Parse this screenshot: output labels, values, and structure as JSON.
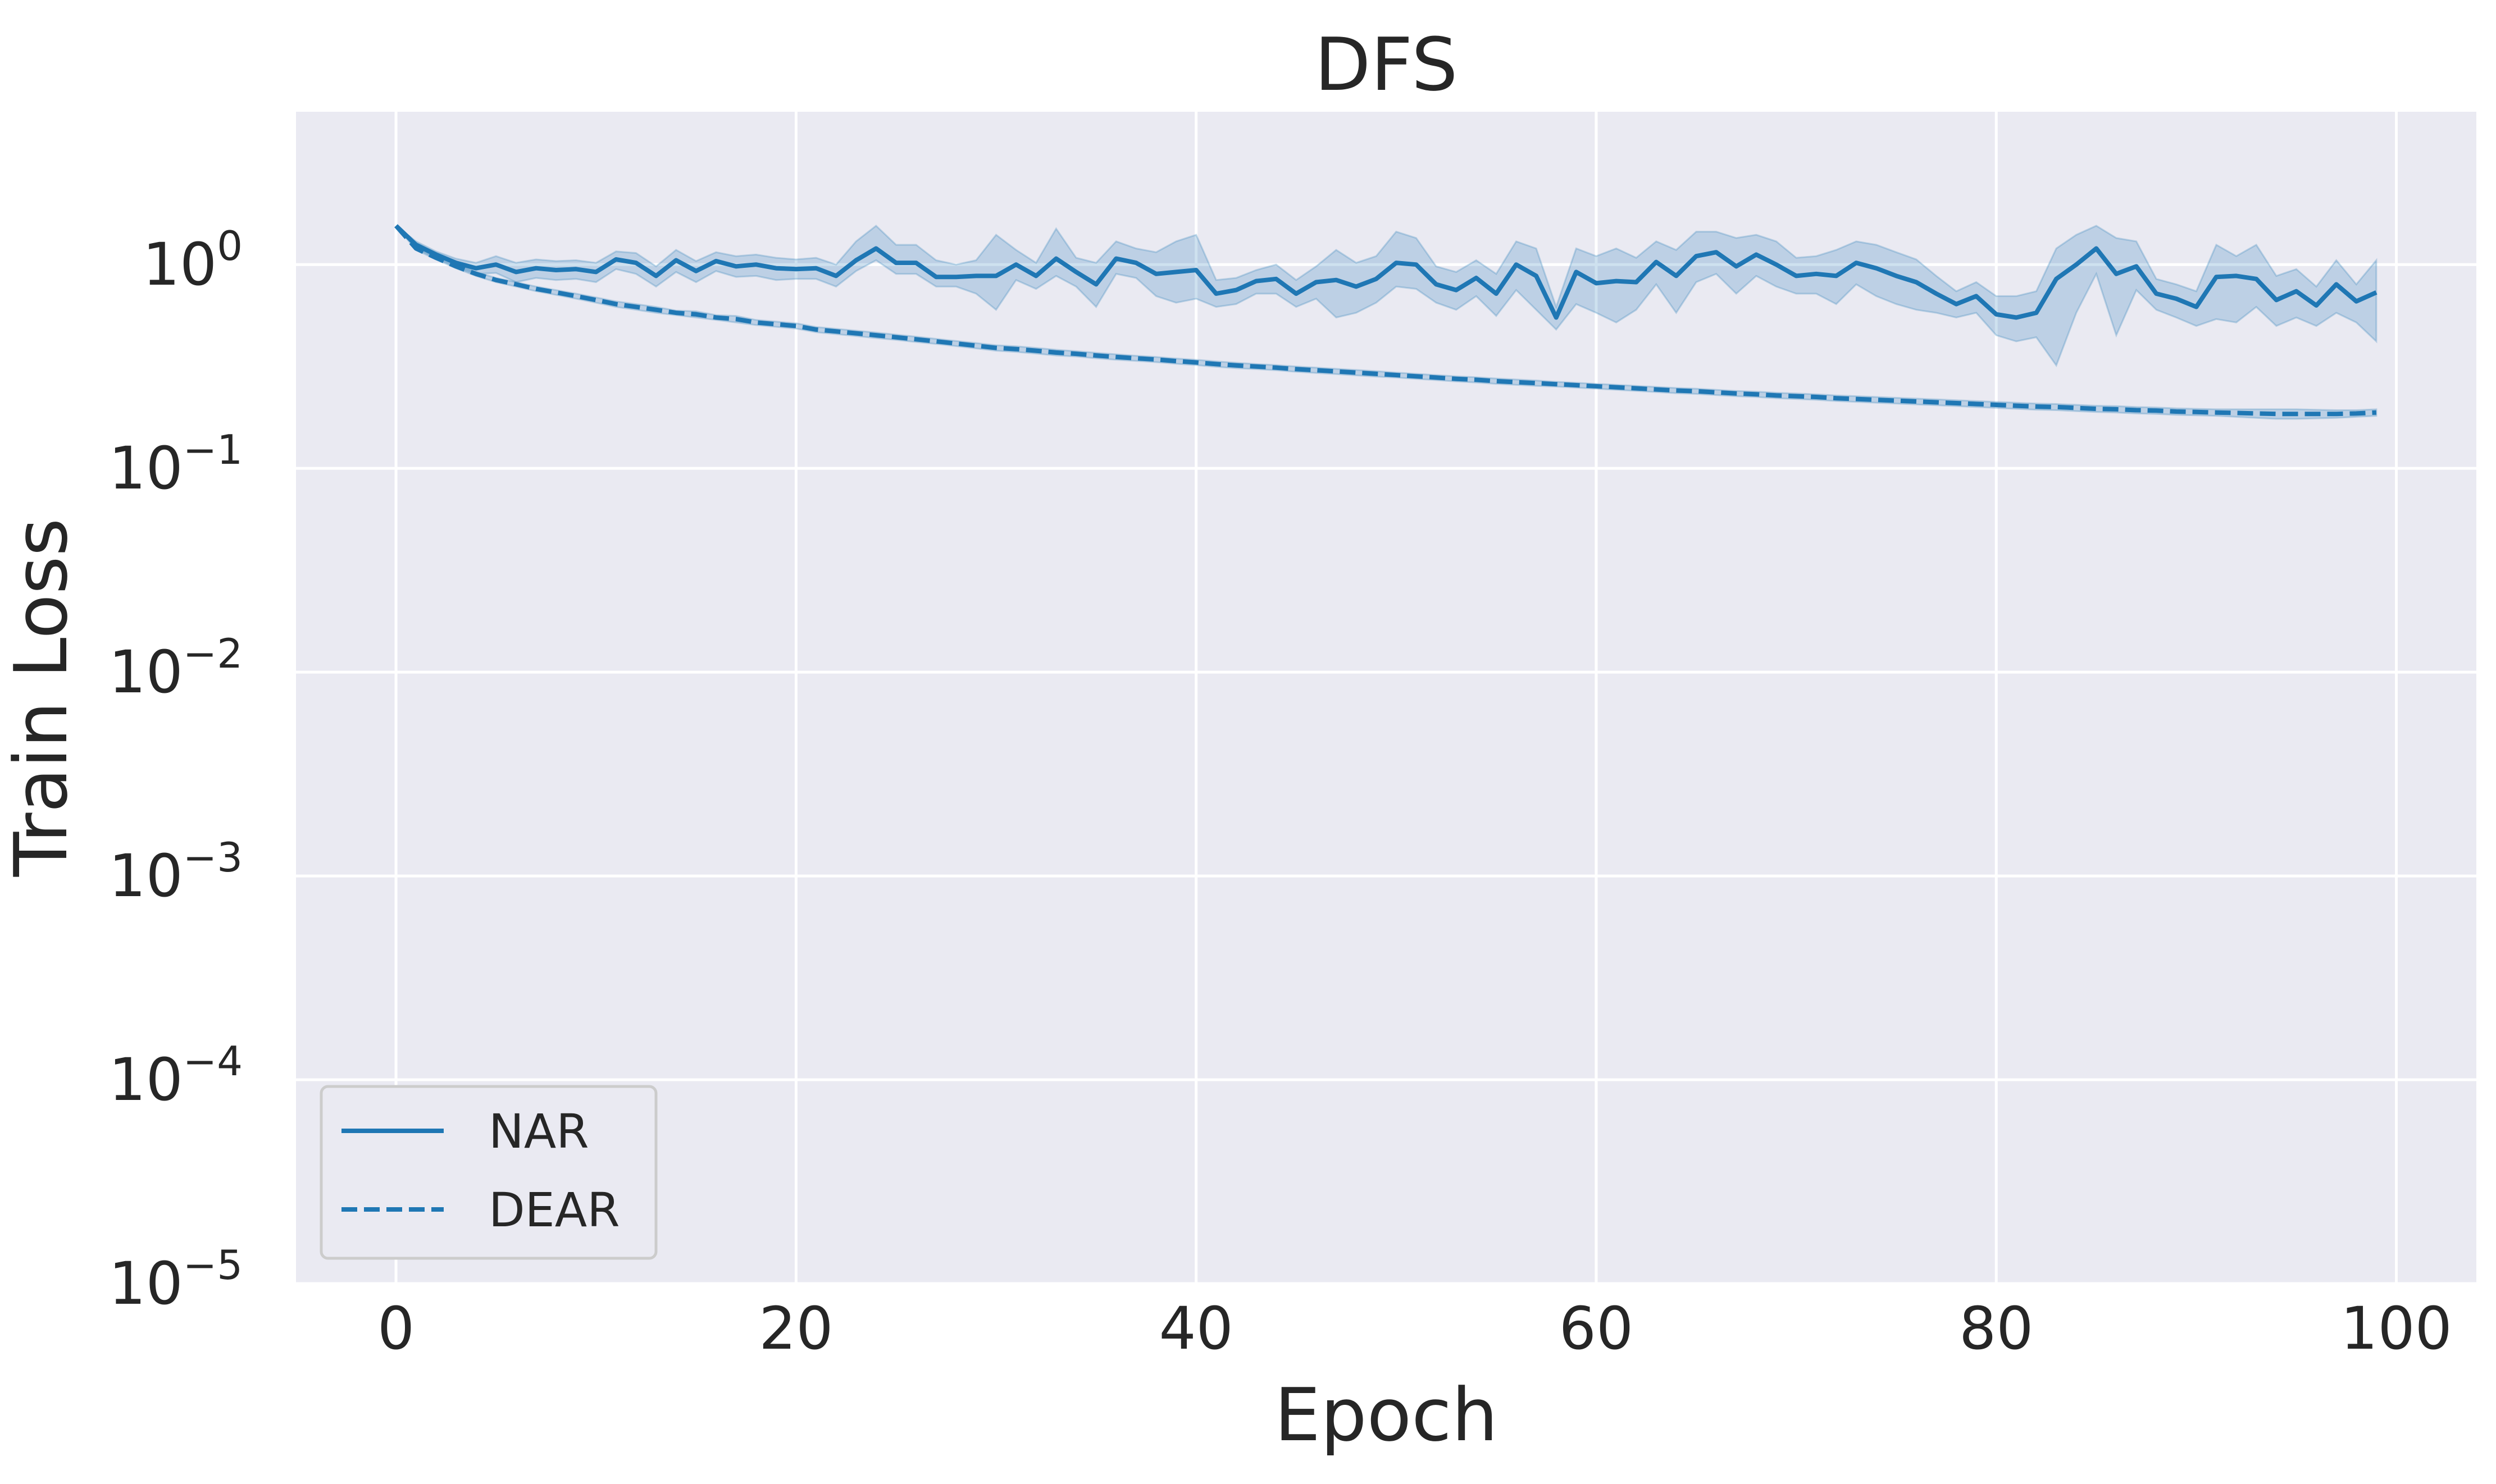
{
  "chart_data": {
    "type": "line",
    "title": "DFS",
    "xlabel": "Epoch",
    "ylabel": "Train Loss",
    "yscale": "log",
    "xlim": [
      -5,
      104
    ],
    "ylim_exponent": [
      -5,
      0.75
    ],
    "x_ticks": [
      {
        "value": 0,
        "label": "0"
      },
      {
        "value": 20,
        "label": "20"
      },
      {
        "value": 40,
        "label": "40"
      },
      {
        "value": 60,
        "label": "60"
      },
      {
        "value": 80,
        "label": "80"
      },
      {
        "value": 100,
        "label": "100"
      }
    ],
    "y_ticks": [
      {
        "exp": 0,
        "base": "10",
        "sup": "0"
      },
      {
        "exp": -1,
        "base": "10",
        "sup": "−1"
      },
      {
        "exp": -2,
        "base": "10",
        "sup": "−2"
      },
      {
        "exp": -3,
        "base": "10",
        "sup": "−3"
      },
      {
        "exp": -4,
        "base": "10",
        "sup": "−4"
      },
      {
        "exp": -5,
        "base": "10",
        "sup": "−5"
      }
    ],
    "grid": true,
    "legend_position": "lower-left",
    "background_color": "#eaeaf2",
    "series": [
      {
        "name": "NAR",
        "style": "solid",
        "color": "#1f77b4",
        "band_color": "#1f77b4",
        "x": [
          0,
          1,
          2,
          3,
          4,
          5,
          6,
          7,
          8,
          9,
          10,
          11,
          12,
          13,
          14,
          15,
          16,
          17,
          18,
          19,
          20,
          21,
          22,
          23,
          24,
          25,
          26,
          27,
          28,
          29,
          30,
          31,
          32,
          33,
          34,
          35,
          36,
          37,
          38,
          39,
          40,
          41,
          42,
          43,
          44,
          45,
          46,
          47,
          48,
          49,
          50,
          51,
          52,
          53,
          54,
          55,
          56,
          57,
          58,
          59,
          60,
          61,
          62,
          63,
          64,
          65,
          66,
          67,
          68,
          69,
          70,
          71,
          72,
          73,
          74,
          75,
          76,
          77,
          78,
          79,
          80,
          81,
          82,
          83,
          84,
          85,
          86,
          87,
          88,
          89,
          90,
          91,
          92,
          93,
          94,
          95,
          96,
          97,
          98,
          99
        ],
        "values": [
          1.55,
          1.25,
          1.12,
          1.02,
          0.96,
          1.0,
          0.92,
          0.96,
          0.94,
          0.95,
          0.92,
          1.06,
          1.02,
          0.88,
          1.05,
          0.93,
          1.04,
          0.98,
          1.0,
          0.96,
          0.95,
          0.96,
          0.88,
          1.05,
          1.2,
          1.02,
          1.02,
          0.87,
          0.87,
          0.88,
          0.88,
          1.0,
          0.88,
          1.07,
          0.92,
          0.8,
          1.07,
          1.02,
          0.9,
          0.92,
          0.94,
          0.72,
          0.75,
          0.83,
          0.85,
          0.72,
          0.82,
          0.84,
          0.78,
          0.85,
          1.02,
          1.0,
          0.8,
          0.75,
          0.86,
          0.72,
          1.0,
          0.88,
          0.55,
          0.92,
          0.81,
          0.83,
          0.82,
          1.03,
          0.88,
          1.1,
          1.15,
          0.98,
          1.12,
          1.0,
          0.88,
          0.9,
          0.88,
          1.02,
          0.96,
          0.88,
          0.82,
          0.72,
          0.64,
          0.7,
          0.57,
          0.55,
          0.58,
          0.85,
          1.0,
          1.2,
          0.9,
          0.98,
          0.72,
          0.68,
          0.62,
          0.87,
          0.88,
          0.85,
          0.67,
          0.74,
          0.63,
          0.8,
          0.66,
          0.73
        ],
        "lower": [
          1.55,
          1.2,
          1.08,
          0.97,
          0.9,
          0.91,
          0.82,
          0.86,
          0.84,
          0.85,
          0.82,
          0.95,
          0.9,
          0.78,
          0.92,
          0.82,
          0.93,
          0.87,
          0.88,
          0.84,
          0.85,
          0.85,
          0.78,
          0.93,
          1.05,
          0.9,
          0.9,
          0.78,
          0.78,
          0.72,
          0.6,
          0.84,
          0.76,
          0.88,
          0.78,
          0.62,
          0.9,
          0.86,
          0.7,
          0.65,
          0.68,
          0.62,
          0.64,
          0.72,
          0.72,
          0.62,
          0.68,
          0.55,
          0.58,
          0.65,
          0.78,
          0.76,
          0.65,
          0.6,
          0.7,
          0.56,
          0.75,
          0.6,
          0.48,
          0.64,
          0.58,
          0.52,
          0.6,
          0.8,
          0.58,
          0.82,
          0.9,
          0.72,
          0.88,
          0.78,
          0.72,
          0.72,
          0.64,
          0.8,
          0.7,
          0.64,
          0.6,
          0.58,
          0.55,
          0.58,
          0.45,
          0.42,
          0.44,
          0.32,
          0.58,
          0.9,
          0.45,
          0.75,
          0.6,
          0.55,
          0.5,
          0.54,
          0.52,
          0.62,
          0.5,
          0.55,
          0.5,
          0.58,
          0.52,
          0.42
        ],
        "upper": [
          1.55,
          1.3,
          1.16,
          1.07,
          1.02,
          1.1,
          1.02,
          1.06,
          1.04,
          1.05,
          1.02,
          1.16,
          1.14,
          0.98,
          1.18,
          1.04,
          1.15,
          1.1,
          1.12,
          1.08,
          1.06,
          1.08,
          1.0,
          1.3,
          1.55,
          1.25,
          1.25,
          1.05,
          1.0,
          1.05,
          1.4,
          1.18,
          1.02,
          1.5,
          1.08,
          1.02,
          1.3,
          1.2,
          1.15,
          1.3,
          1.4,
          0.84,
          0.86,
          0.94,
          1.0,
          0.84,
          0.98,
          1.18,
          1.02,
          1.1,
          1.45,
          1.35,
          0.98,
          0.92,
          1.05,
          0.9,
          1.3,
          1.2,
          0.62,
          1.2,
          1.1,
          1.2,
          1.08,
          1.3,
          1.18,
          1.45,
          1.45,
          1.35,
          1.4,
          1.3,
          1.08,
          1.1,
          1.18,
          1.3,
          1.25,
          1.15,
          1.06,
          0.88,
          0.74,
          0.82,
          0.7,
          0.7,
          0.74,
          1.2,
          1.4,
          1.55,
          1.35,
          1.3,
          0.85,
          0.8,
          0.74,
          1.25,
          1.1,
          1.25,
          0.88,
          0.95,
          0.78,
          1.05,
          0.8,
          1.05
        ]
      },
      {
        "name": "DEAR",
        "style": "dashed",
        "color": "#1f77b4",
        "band_color": "#1f77b4",
        "x": [
          0,
          1,
          2,
          3,
          4,
          5,
          6,
          7,
          8,
          9,
          10,
          11,
          12,
          13,
          14,
          15,
          16,
          17,
          18,
          19,
          20,
          21,
          22,
          23,
          24,
          25,
          26,
          27,
          28,
          29,
          30,
          31,
          32,
          33,
          34,
          35,
          36,
          37,
          38,
          39,
          40,
          41,
          42,
          43,
          44,
          45,
          46,
          47,
          48,
          49,
          50,
          51,
          52,
          53,
          54,
          55,
          56,
          57,
          58,
          59,
          60,
          61,
          62,
          63,
          64,
          65,
          66,
          67,
          68,
          69,
          70,
          71,
          72,
          73,
          74,
          75,
          76,
          77,
          78,
          79,
          80,
          81,
          82,
          83,
          84,
          85,
          86,
          87,
          88,
          89,
          90,
          91,
          92,
          93,
          94,
          95,
          96,
          97,
          98,
          99
        ],
        "values": [
          1.55,
          1.2,
          1.08,
          0.98,
          0.9,
          0.84,
          0.8,
          0.76,
          0.73,
          0.7,
          0.67,
          0.64,
          0.62,
          0.6,
          0.58,
          0.57,
          0.55,
          0.54,
          0.52,
          0.51,
          0.5,
          0.48,
          0.47,
          0.46,
          0.45,
          0.44,
          0.43,
          0.42,
          0.41,
          0.4,
          0.39,
          0.385,
          0.378,
          0.37,
          0.365,
          0.358,
          0.352,
          0.347,
          0.342,
          0.336,
          0.331,
          0.325,
          0.32,
          0.316,
          0.312,
          0.307,
          0.303,
          0.299,
          0.295,
          0.291,
          0.287,
          0.283,
          0.279,
          0.275,
          0.272,
          0.268,
          0.265,
          0.262,
          0.259,
          0.256,
          0.253,
          0.25,
          0.247,
          0.244,
          0.241,
          0.239,
          0.236,
          0.233,
          0.231,
          0.228,
          0.226,
          0.224,
          0.221,
          0.219,
          0.217,
          0.215,
          0.213,
          0.211,
          0.209,
          0.207,
          0.205,
          0.203,
          0.201,
          0.2,
          0.198,
          0.196,
          0.195,
          0.193,
          0.192,
          0.19,
          0.189,
          0.188,
          0.187,
          0.186,
          0.185,
          0.185,
          0.185,
          0.185,
          0.186,
          0.188
        ],
        "lower": [
          1.55,
          1.18,
          1.06,
          0.96,
          0.88,
          0.82,
          0.78,
          0.74,
          0.71,
          0.68,
          0.65,
          0.62,
          0.6,
          0.58,
          0.565,
          0.55,
          0.535,
          0.52,
          0.505,
          0.495,
          0.485,
          0.466,
          0.456,
          0.446,
          0.436,
          0.427,
          0.417,
          0.408,
          0.398,
          0.388,
          0.378,
          0.373,
          0.366,
          0.358,
          0.354,
          0.347,
          0.341,
          0.337,
          0.332,
          0.326,
          0.321,
          0.315,
          0.31,
          0.307,
          0.303,
          0.298,
          0.294,
          0.29,
          0.286,
          0.282,
          0.279,
          0.275,
          0.271,
          0.267,
          0.264,
          0.26,
          0.257,
          0.254,
          0.252,
          0.249,
          0.246,
          0.243,
          0.24,
          0.237,
          0.234,
          0.232,
          0.229,
          0.226,
          0.224,
          0.221,
          0.219,
          0.217,
          0.214,
          0.212,
          0.21,
          0.208,
          0.206,
          0.204,
          0.202,
          0.2,
          0.198,
          0.196,
          0.194,
          0.193,
          0.191,
          0.189,
          0.188,
          0.186,
          0.185,
          0.183,
          0.182,
          0.181,
          0.179,
          0.177,
          0.175,
          0.175,
          0.176,
          0.177,
          0.179,
          0.181
        ],
        "upper": [
          1.55,
          1.22,
          1.1,
          1.0,
          0.92,
          0.86,
          0.82,
          0.78,
          0.75,
          0.72,
          0.69,
          0.66,
          0.64,
          0.62,
          0.595,
          0.59,
          0.565,
          0.56,
          0.535,
          0.525,
          0.515,
          0.494,
          0.484,
          0.474,
          0.464,
          0.453,
          0.443,
          0.432,
          0.422,
          0.412,
          0.402,
          0.397,
          0.39,
          0.382,
          0.376,
          0.369,
          0.363,
          0.357,
          0.352,
          0.346,
          0.341,
          0.335,
          0.33,
          0.325,
          0.321,
          0.316,
          0.312,
          0.308,
          0.304,
          0.3,
          0.295,
          0.291,
          0.287,
          0.283,
          0.28,
          0.276,
          0.273,
          0.27,
          0.266,
          0.263,
          0.26,
          0.257,
          0.254,
          0.251,
          0.248,
          0.246,
          0.243,
          0.24,
          0.238,
          0.235,
          0.233,
          0.231,
          0.228,
          0.226,
          0.224,
          0.222,
          0.22,
          0.218,
          0.216,
          0.214,
          0.212,
          0.21,
          0.208,
          0.207,
          0.205,
          0.203,
          0.202,
          0.2,
          0.199,
          0.197,
          0.196,
          0.195,
          0.195,
          0.195,
          0.195,
          0.195,
          0.194,
          0.193,
          0.193,
          0.195
        ]
      }
    ]
  }
}
